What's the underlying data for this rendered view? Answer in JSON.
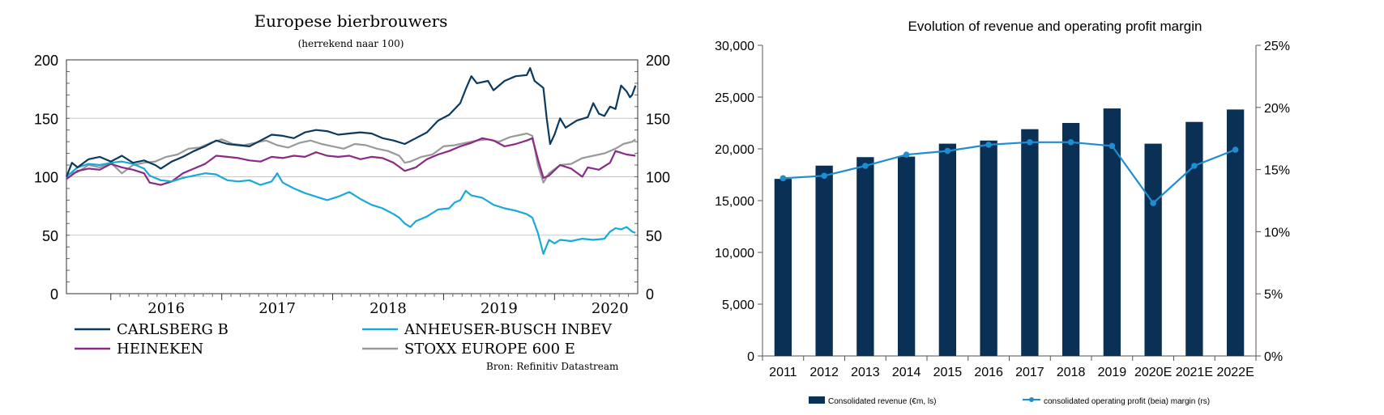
{
  "chart_data": [
    {
      "type": "line",
      "title": "Europese bierbrouwers",
      "subtitle": "(herrekend naar 100)",
      "source": "Bron: Refinitiv Datastream",
      "x_ticks": [
        "2016",
        "2017",
        "2018",
        "2019",
        "2020"
      ],
      "y_ticks": [
        0,
        50,
        100,
        150,
        200
      ],
      "ylim": [
        0,
        200
      ],
      "xlim": [
        2015.6,
        2020.75
      ],
      "legend_position": "bottom",
      "grid": true,
      "series": [
        {
          "name": "CARLSBERG B",
          "color": "#0b3a5e",
          "points": [
            [
              2015.6,
              100
            ],
            [
              2015.65,
              112
            ],
            [
              2015.7,
              108
            ],
            [
              2015.8,
              115
            ],
            [
              2015.9,
              117
            ],
            [
              2016.0,
              113
            ],
            [
              2016.1,
              118
            ],
            [
              2016.2,
              112
            ],
            [
              2016.3,
              114
            ],
            [
              2016.4,
              110
            ],
            [
              2016.45,
              107
            ],
            [
              2016.55,
              113
            ],
            [
              2016.65,
              117
            ],
            [
              2016.75,
              122
            ],
            [
              2016.85,
              126
            ],
            [
              2016.95,
              131
            ],
            [
              2017.05,
              128
            ],
            [
              2017.15,
              127
            ],
            [
              2017.25,
              126
            ],
            [
              2017.35,
              131
            ],
            [
              2017.45,
              136
            ],
            [
              2017.55,
              135
            ],
            [
              2017.65,
              133
            ],
            [
              2017.75,
              138
            ],
            [
              2017.85,
              140
            ],
            [
              2017.95,
              139
            ],
            [
              2018.05,
              136
            ],
            [
              2018.15,
              137
            ],
            [
              2018.25,
              138
            ],
            [
              2018.35,
              137
            ],
            [
              2018.45,
              133
            ],
            [
              2018.55,
              131
            ],
            [
              2018.65,
              128
            ],
            [
              2018.75,
              133
            ],
            [
              2018.85,
              138
            ],
            [
              2018.95,
              148
            ],
            [
              2019.05,
              153
            ],
            [
              2019.15,
              163
            ],
            [
              2019.2,
              175
            ],
            [
              2019.25,
              186
            ],
            [
              2019.3,
              180
            ],
            [
              2019.4,
              182
            ],
            [
              2019.45,
              174
            ],
            [
              2019.55,
              182
            ],
            [
              2019.65,
              186
            ],
            [
              2019.75,
              187
            ],
            [
              2019.78,
              193
            ],
            [
              2019.82,
              182
            ],
            [
              2019.9,
              176
            ],
            [
              2019.93,
              150
            ],
            [
              2019.96,
              128
            ],
            [
              2020.0,
              136
            ],
            [
              2020.05,
              150
            ],
            [
              2020.1,
              142
            ],
            [
              2020.2,
              148
            ],
            [
              2020.3,
              151
            ],
            [
              2020.35,
              163
            ],
            [
              2020.4,
              154
            ],
            [
              2020.45,
              152
            ],
            [
              2020.5,
              160
            ],
            [
              2020.55,
              158
            ],
            [
              2020.6,
              178
            ],
            [
              2020.65,
              173
            ],
            [
              2020.68,
              168
            ],
            [
              2020.7,
              170
            ],
            [
              2020.73,
              178
            ]
          ]
        },
        {
          "name": "ANHEUSER-BUSCH INBEV",
          "color": "#19a9d9",
          "points": [
            [
              2015.6,
              100
            ],
            [
              2015.7,
              108
            ],
            [
              2015.8,
              111
            ],
            [
              2015.9,
              110
            ],
            [
              2016.0,
              112
            ],
            [
              2016.1,
              113
            ],
            [
              2016.2,
              111
            ],
            [
              2016.3,
              107
            ],
            [
              2016.35,
              101
            ],
            [
              2016.45,
              97
            ],
            [
              2016.55,
              96
            ],
            [
              2016.65,
              99
            ],
            [
              2016.75,
              101
            ],
            [
              2016.85,
              103
            ],
            [
              2016.95,
              102
            ],
            [
              2017.05,
              97
            ],
            [
              2017.15,
              96
            ],
            [
              2017.25,
              97
            ],
            [
              2017.35,
              93
            ],
            [
              2017.45,
              96
            ],
            [
              2017.5,
              103
            ],
            [
              2017.55,
              95
            ],
            [
              2017.65,
              90
            ],
            [
              2017.75,
              86
            ],
            [
              2017.85,
              83
            ],
            [
              2017.95,
              80
            ],
            [
              2018.05,
              83
            ],
            [
              2018.15,
              87
            ],
            [
              2018.25,
              81
            ],
            [
              2018.35,
              76
            ],
            [
              2018.45,
              73
            ],
            [
              2018.55,
              68
            ],
            [
              2018.6,
              65
            ],
            [
              2018.65,
              60
            ],
            [
              2018.7,
              57
            ],
            [
              2018.75,
              62
            ],
            [
              2018.85,
              66
            ],
            [
              2018.95,
              72
            ],
            [
              2019.05,
              73
            ],
            [
              2019.1,
              78
            ],
            [
              2019.15,
              80
            ],
            [
              2019.2,
              88
            ],
            [
              2019.25,
              84
            ],
            [
              2019.35,
              82
            ],
            [
              2019.45,
              76
            ],
            [
              2019.55,
              73
            ],
            [
              2019.65,
              71
            ],
            [
              2019.75,
              68
            ],
            [
              2019.8,
              65
            ],
            [
              2019.85,
              52
            ],
            [
              2019.9,
              34
            ],
            [
              2019.95,
              46
            ],
            [
              2020.0,
              43
            ],
            [
              2020.05,
              46
            ],
            [
              2020.15,
              45
            ],
            [
              2020.25,
              47
            ],
            [
              2020.35,
              46
            ],
            [
              2020.45,
              47
            ],
            [
              2020.5,
              53
            ],
            [
              2020.55,
              56
            ],
            [
              2020.6,
              55
            ],
            [
              2020.65,
              57
            ],
            [
              2020.7,
              53
            ],
            [
              2020.73,
              52
            ]
          ]
        },
        {
          "name": "HEINEKEN",
          "color": "#8a2a86",
          "points": [
            [
              2015.6,
              98
            ],
            [
              2015.7,
              105
            ],
            [
              2015.8,
              107
            ],
            [
              2015.9,
              106
            ],
            [
              2016.0,
              111
            ],
            [
              2016.1,
              108
            ],
            [
              2016.2,
              106
            ],
            [
              2016.3,
              103
            ],
            [
              2016.35,
              95
            ],
            [
              2016.45,
              93
            ],
            [
              2016.55,
              96
            ],
            [
              2016.65,
              103
            ],
            [
              2016.75,
              107
            ],
            [
              2016.85,
              111
            ],
            [
              2016.95,
              118
            ],
            [
              2017.05,
              117
            ],
            [
              2017.15,
              116
            ],
            [
              2017.25,
              114
            ],
            [
              2017.35,
              113
            ],
            [
              2017.45,
              117
            ],
            [
              2017.55,
              116
            ],
            [
              2017.65,
              118
            ],
            [
              2017.75,
              117
            ],
            [
              2017.85,
              121
            ],
            [
              2017.95,
              118
            ],
            [
              2018.05,
              117
            ],
            [
              2018.15,
              118
            ],
            [
              2018.25,
              115
            ],
            [
              2018.35,
              117
            ],
            [
              2018.45,
              116
            ],
            [
              2018.55,
              112
            ],
            [
              2018.65,
              105
            ],
            [
              2018.75,
              108
            ],
            [
              2018.85,
              115
            ],
            [
              2018.95,
              119
            ],
            [
              2019.05,
              122
            ],
            [
              2019.15,
              126
            ],
            [
              2019.25,
              129
            ],
            [
              2019.35,
              133
            ],
            [
              2019.45,
              131
            ],
            [
              2019.55,
              126
            ],
            [
              2019.65,
              128
            ],
            [
              2019.75,
              131
            ],
            [
              2019.8,
              133
            ],
            [
              2019.85,
              115
            ],
            [
              2019.9,
              99
            ],
            [
              2019.95,
              101
            ],
            [
              2020.05,
              110
            ],
            [
              2020.15,
              107
            ],
            [
              2020.25,
              100
            ],
            [
              2020.3,
              108
            ],
            [
              2020.4,
              106
            ],
            [
              2020.5,
              112
            ],
            [
              2020.55,
              122
            ],
            [
              2020.65,
              119
            ],
            [
              2020.73,
              118
            ]
          ]
        },
        {
          "name": "STOXX EUROPE 600 E",
          "color": "#999999",
          "points": [
            [
              2015.6,
              102
            ],
            [
              2015.7,
              104
            ],
            [
              2015.8,
              110
            ],
            [
              2015.9,
              108
            ],
            [
              2016.0,
              112
            ],
            [
              2016.1,
              103
            ],
            [
              2016.2,
              110
            ],
            [
              2016.3,
              112
            ],
            [
              2016.4,
              113
            ],
            [
              2016.5,
              117
            ],
            [
              2016.6,
              119
            ],
            [
              2016.7,
              124
            ],
            [
              2016.8,
              125
            ],
            [
              2016.9,
              129
            ],
            [
              2017.0,
              132
            ],
            [
              2017.1,
              128
            ],
            [
              2017.2,
              127
            ],
            [
              2017.3,
              129
            ],
            [
              2017.4,
              131
            ],
            [
              2017.5,
              127
            ],
            [
              2017.6,
              125
            ],
            [
              2017.7,
              129
            ],
            [
              2017.8,
              131
            ],
            [
              2017.9,
              128
            ],
            [
              2018.0,
              126
            ],
            [
              2018.1,
              124
            ],
            [
              2018.2,
              128
            ],
            [
              2018.3,
              127
            ],
            [
              2018.4,
              124
            ],
            [
              2018.5,
              122
            ],
            [
              2018.6,
              118
            ],
            [
              2018.65,
              112
            ],
            [
              2018.7,
              113
            ],
            [
              2018.8,
              117
            ],
            [
              2018.9,
              119
            ],
            [
              2019.0,
              126
            ],
            [
              2019.1,
              127
            ],
            [
              2019.2,
              129
            ],
            [
              2019.3,
              131
            ],
            [
              2019.4,
              132
            ],
            [
              2019.5,
              130
            ],
            [
              2019.6,
              134
            ],
            [
              2019.7,
              136
            ],
            [
              2019.75,
              137
            ],
            [
              2019.8,
              135
            ],
            [
              2019.85,
              110
            ],
            [
              2019.9,
              95
            ],
            [
              2019.95,
              103
            ],
            [
              2020.05,
              110
            ],
            [
              2020.15,
              111
            ],
            [
              2020.25,
              116
            ],
            [
              2020.35,
              118
            ],
            [
              2020.45,
              120
            ],
            [
              2020.55,
              124
            ],
            [
              2020.62,
              128
            ],
            [
              2020.7,
              130
            ],
            [
              2020.73,
              132
            ]
          ]
        }
      ]
    },
    {
      "type": "bar+line",
      "title": "Evolution of revenue and operating profit margin",
      "categories": [
        "2011",
        "2012",
        "2013",
        "2014",
        "2015",
        "2016",
        "2017",
        "2018",
        "2019",
        "2020E",
        "2021E",
        "2022E"
      ],
      "y_ticks": [
        "0",
        "5,000",
        "10,000",
        "15,000",
        "20,000",
        "25,000",
        "30,000"
      ],
      "ylim": [
        0,
        30000
      ],
      "y2_ticks": [
        "0%",
        "5%",
        "10%",
        "15%",
        "20%",
        "25%"
      ],
      "y2lim": [
        0,
        25
      ],
      "legend_position": "bottom",
      "grid": true,
      "series": [
        {
          "name": "Consolidated revenue (€m, ls)",
          "type": "bar",
          "axis": "left",
          "color": "#0a3055",
          "values": [
            17100,
            18380,
            19200,
            19250,
            20500,
            20800,
            21900,
            22500,
            23900,
            20500,
            22600,
            23800
          ]
        },
        {
          "name": "consolidated operating profit (beia) margin (rs)",
          "type": "line",
          "axis": "right",
          "color": "#1f8ed0",
          "values": [
            14.3,
            14.5,
            15.3,
            16.2,
            16.5,
            17.0,
            17.2,
            17.2,
            16.9,
            12.3,
            15.3,
            16.6
          ]
        }
      ]
    }
  ]
}
